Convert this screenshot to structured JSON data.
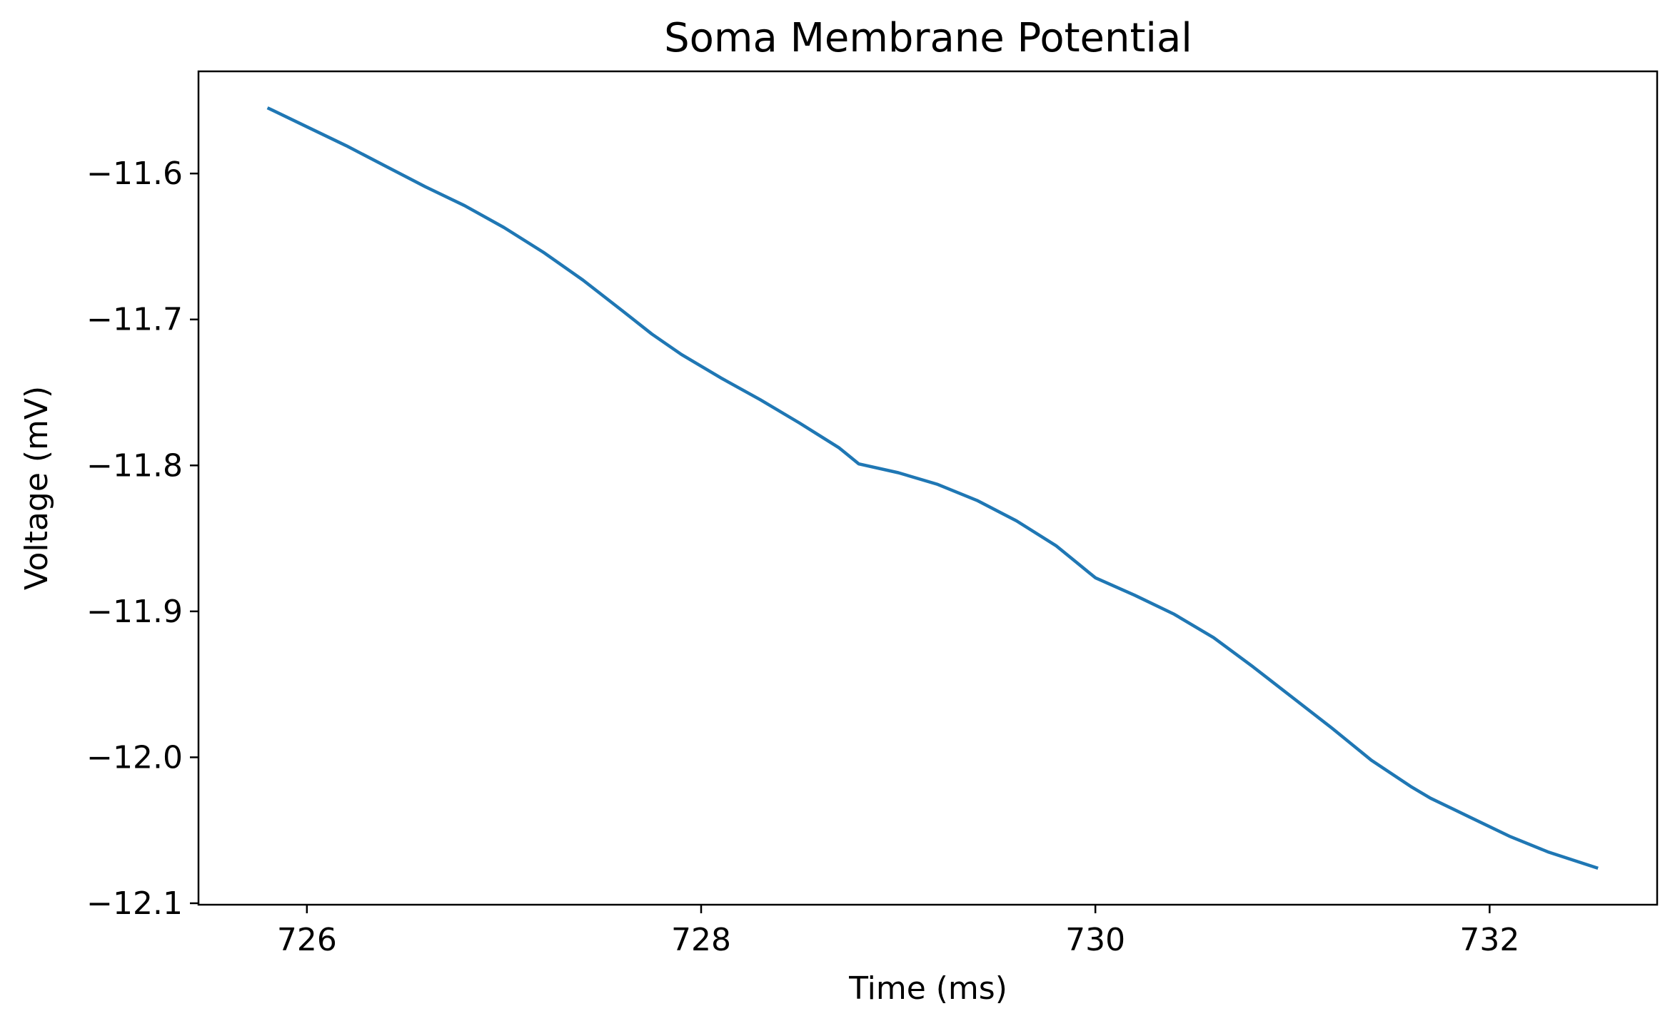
{
  "chart_data": {
    "type": "line",
    "title": "Soma Membrane Potential",
    "xlabel": "Time (ms)",
    "ylabel": "Voltage (mV)",
    "xlim": [
      725.45,
      732.85
    ],
    "ylim": [
      -12.101,
      -11.53
    ],
    "xticks": [
      726,
      728,
      730,
      732
    ],
    "xtick_labels": [
      "726",
      "728",
      "730",
      "732"
    ],
    "yticks": [
      -11.6,
      -11.7,
      -11.8,
      -11.9,
      -12.0,
      -12.1
    ],
    "ytick_labels": [
      "−11.6",
      "−11.7",
      "−11.8",
      "−11.9",
      "−12.0",
      "−12.1"
    ],
    "grid": false,
    "legend": "none",
    "series": [
      {
        "color": "#1f77b4",
        "x": [
          725.8,
          726.0,
          726.2,
          726.4,
          726.6,
          726.8,
          727.0,
          727.2,
          727.4,
          727.6,
          727.75,
          727.9,
          728.1,
          728.3,
          728.5,
          728.7,
          728.8,
          729.0,
          729.2,
          729.4,
          729.6,
          729.8,
          729.9,
          730.0,
          730.2,
          730.4,
          730.6,
          730.8,
          731.0,
          731.2,
          731.4,
          731.6,
          731.7,
          731.9,
          732.1,
          732.3,
          732.55
        ],
        "y": [
          -11.555,
          -11.568,
          -11.581,
          -11.595,
          -11.609,
          -11.622,
          -11.637,
          -11.654,
          -11.673,
          -11.694,
          -11.71,
          -11.724,
          -11.74,
          -11.755,
          -11.771,
          -11.788,
          -11.799,
          -11.805,
          -11.813,
          -11.824,
          -11.838,
          -11.855,
          -11.866,
          -11.877,
          -11.889,
          -11.902,
          -11.918,
          -11.938,
          -11.959,
          -11.98,
          -12.002,
          -12.02,
          -12.028,
          -12.041,
          -12.054,
          -12.065,
          -12.076
        ]
      }
    ]
  }
}
